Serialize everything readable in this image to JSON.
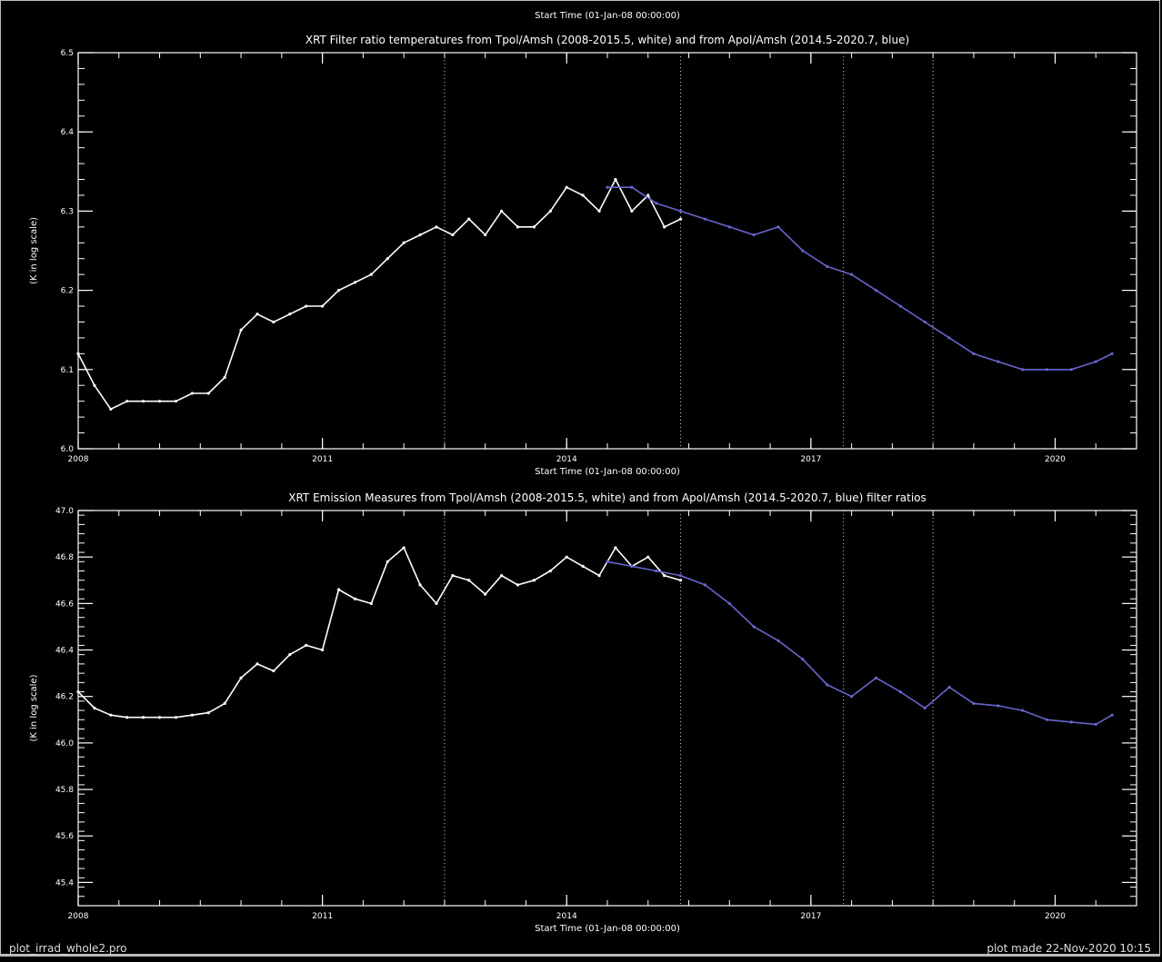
{
  "chart_data": [
    {
      "type": "line",
      "top_label": "Start Time (01-Jan-08 00:00:00)",
      "title": "XRT Filter ratio temperatures from Tpol/Amsh (2008-2015.5, white) and from Apol/Amsh (2014.5-2020.7, blue)",
      "ylabel": "(K in log scale)",
      "xlabel": "Start Time (01-Jan-08 00:00:00)",
      "ylim": [
        6.0,
        6.5
      ],
      "xlim": [
        2008.0,
        2021.0
      ],
      "x_ticks": [
        {
          "value": 2008,
          "label": "2008"
        },
        {
          "value": 2011,
          "label": "2011"
        },
        {
          "value": 2014,
          "label": "2014"
        },
        {
          "value": 2017,
          "label": "2017"
        },
        {
          "value": 2020,
          "label": "2020"
        }
      ],
      "y_ticks": [
        {
          "value": 6.0,
          "label": "6.0"
        },
        {
          "value": 6.1,
          "label": "6.1"
        },
        {
          "value": 6.2,
          "label": "6.2"
        },
        {
          "value": 6.3,
          "label": "6.3"
        },
        {
          "value": 6.4,
          "label": "6.4"
        },
        {
          "value": 6.5,
          "label": "6.5"
        }
      ],
      "vlines": [
        2012.5,
        2015.4,
        2017.4,
        2018.5
      ],
      "series": [
        {
          "color": "#ffffff",
          "x": [
            2008.0,
            2008.2,
            2008.4,
            2008.6,
            2008.8,
            2009.0,
            2009.2,
            2009.4,
            2009.6,
            2009.8,
            2010.0,
            2010.2,
            2010.4,
            2010.6,
            2010.8,
            2011.0,
            2011.2,
            2011.4,
            2011.6,
            2011.8,
            2012.0,
            2012.2,
            2012.4,
            2012.6,
            2012.8,
            2013.0,
            2013.2,
            2013.4,
            2013.6,
            2013.8,
            2014.0,
            2014.2,
            2014.4,
            2014.6,
            2014.8,
            2015.0,
            2015.2,
            2015.4
          ],
          "y": [
            6.12,
            6.08,
            6.05,
            6.06,
            6.06,
            6.06,
            6.06,
            6.07,
            6.07,
            6.09,
            6.15,
            6.17,
            6.16,
            6.17,
            6.18,
            6.18,
            6.2,
            6.21,
            6.22,
            6.24,
            6.26,
            6.27,
            6.28,
            6.27,
            6.29,
            6.27,
            6.3,
            6.28,
            6.28,
            6.3,
            6.33,
            6.32,
            6.3,
            6.34,
            6.3,
            6.32,
            6.28,
            6.29
          ]
        },
        {
          "color": "#6666cc",
          "x": [
            2014.5,
            2014.8,
            2015.1,
            2015.4,
            2015.7,
            2016.0,
            2016.3,
            2016.6,
            2016.9,
            2017.2,
            2017.5,
            2017.8,
            2018.1,
            2018.4,
            2018.7,
            2019.0,
            2019.3,
            2019.6,
            2019.9,
            2020.2,
            2020.5,
            2020.7
          ],
          "y": [
            6.33,
            6.33,
            6.31,
            6.3,
            6.29,
            6.28,
            6.27,
            6.28,
            6.25,
            6.23,
            6.22,
            6.2,
            6.18,
            6.16,
            6.14,
            6.12,
            6.11,
            6.1,
            6.1,
            6.1,
            6.11,
            6.12
          ]
        }
      ]
    },
    {
      "type": "line",
      "title": "XRT Emission Measures from Tpol/Amsh (2008-2015.5, white) and from Apol/Amsh (2014.5-2020.7, blue) filter ratios",
      "ylabel": "(K in log scale)",
      "xlabel": "Start Time (01-Jan-08 00:00:00)",
      "ylim": [
        45.3,
        47.0
      ],
      "xlim": [
        2008.0,
        2021.0
      ],
      "x_ticks": [
        {
          "value": 2008,
          "label": "2008"
        },
        {
          "value": 2011,
          "label": "2011"
        },
        {
          "value": 2014,
          "label": "2014"
        },
        {
          "value": 2017,
          "label": "2017"
        },
        {
          "value": 2020,
          "label": "2020"
        }
      ],
      "y_ticks": [
        {
          "value": 45.4,
          "label": "45.4"
        },
        {
          "value": 45.6,
          "label": "45.6"
        },
        {
          "value": 45.8,
          "label": "45.8"
        },
        {
          "value": 46.0,
          "label": "46.0"
        },
        {
          "value": 46.2,
          "label": "46.2"
        },
        {
          "value": 46.4,
          "label": "46.4"
        },
        {
          "value": 46.6,
          "label": "46.6"
        },
        {
          "value": 46.8,
          "label": "46.8"
        },
        {
          "value": 47.0,
          "label": "47.0"
        }
      ],
      "vlines": [
        2012.5,
        2015.4,
        2017.4,
        2018.5
      ],
      "series": [
        {
          "color": "#ffffff",
          "x": [
            2008.0,
            2008.2,
            2008.4,
            2008.6,
            2008.8,
            2009.0,
            2009.2,
            2009.4,
            2009.6,
            2009.8,
            2010.0,
            2010.2,
            2010.4,
            2010.6,
            2010.8,
            2011.0,
            2011.2,
            2011.4,
            2011.6,
            2011.8,
            2012.0,
            2012.2,
            2012.4,
            2012.6,
            2012.8,
            2013.0,
            2013.2,
            2013.4,
            2013.6,
            2013.8,
            2014.0,
            2014.2,
            2014.4,
            2014.6,
            2014.8,
            2015.0,
            2015.2,
            2015.4
          ],
          "y": [
            46.22,
            46.15,
            46.12,
            46.11,
            46.11,
            46.11,
            46.11,
            46.12,
            46.13,
            46.17,
            46.28,
            46.34,
            46.31,
            46.38,
            46.42,
            46.4,
            46.66,
            46.62,
            46.6,
            46.78,
            46.84,
            46.68,
            46.6,
            46.72,
            46.7,
            46.64,
            46.72,
            46.68,
            46.7,
            46.74,
            46.8,
            46.76,
            46.72,
            46.84,
            46.76,
            46.8,
            46.72,
            46.7
          ]
        },
        {
          "color": "#6666cc",
          "x": [
            2014.5,
            2014.8,
            2015.1,
            2015.4,
            2015.7,
            2016.0,
            2016.3,
            2016.6,
            2016.9,
            2017.2,
            2017.5,
            2017.8,
            2018.1,
            2018.4,
            2018.7,
            2019.0,
            2019.3,
            2019.6,
            2019.9,
            2020.2,
            2020.5,
            2020.7
          ],
          "y": [
            46.78,
            46.76,
            46.74,
            46.72,
            46.68,
            46.6,
            46.5,
            46.44,
            46.36,
            46.25,
            46.2,
            46.28,
            46.22,
            46.15,
            46.24,
            46.17,
            46.16,
            46.14,
            46.1,
            46.09,
            46.08,
            46.12
          ]
        }
      ]
    }
  ],
  "footer": {
    "left": "plot_irrad_whole2.pro",
    "right": "plot made 22-Nov-2020 10:15"
  }
}
